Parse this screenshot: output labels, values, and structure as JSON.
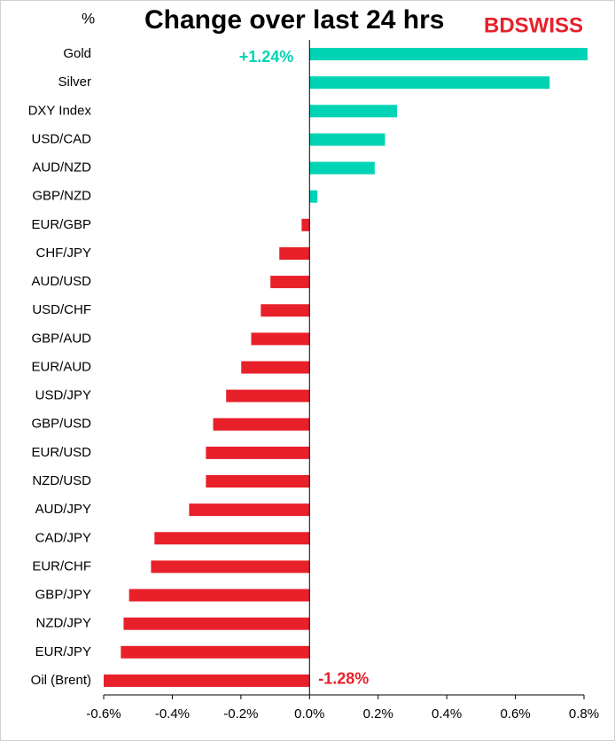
{
  "chart_data": {
    "type": "hbar",
    "title": "Change over last 24 hrs",
    "ylabel": "%",
    "logo": "BDSWISS",
    "categories": [
      "Gold",
      "Silver",
      "DXY Index",
      "USD/CAD",
      "AUD/NZD",
      "GBP/NZD",
      "EUR/GBP",
      "CHF/JPY",
      "AUD/USD",
      "USD/CHF",
      "GBP/AUD",
      "EUR/AUD",
      "USD/JPY",
      "GBP/USD",
      "EUR/USD",
      "NZD/USD",
      "AUD/JPY",
      "CAD/JPY",
      "EUR/CHF",
      "GBP/JPY",
      "NZD/JPY",
      "EUR/JPY",
      "Oil (Brent)"
    ],
    "values": [
      1.24,
      0.7,
      0.255,
      0.22,
      0.19,
      0.023,
      -0.023,
      -0.088,
      -0.114,
      -0.142,
      -0.17,
      -0.199,
      -0.243,
      -0.281,
      -0.302,
      -0.302,
      -0.351,
      -0.452,
      -0.462,
      -0.526,
      -0.542,
      -0.55,
      -1.28
    ],
    "value_labels": [
      "+1.24%",
      null,
      null,
      null,
      null,
      null,
      null,
      null,
      null,
      null,
      null,
      null,
      null,
      null,
      null,
      null,
      null,
      null,
      null,
      null,
      null,
      null,
      "-1.28%"
    ],
    "positive_color": "#00d4b4",
    "negative_color": "#e8202a",
    "xlim": [
      -0.6,
      0.8
    ],
    "xticks": [
      {
        "value": -0.6,
        "label": "-0.6%"
      },
      {
        "value": -0.4,
        "label": "-0.4%"
      },
      {
        "value": -0.2,
        "label": "-0.2%"
      },
      {
        "value": 0,
        "label": "0.0%"
      },
      {
        "value": 0.2,
        "label": "0.2%"
      },
      {
        "value": 0.4,
        "label": "0.4%"
      },
      {
        "value": 0.6,
        "label": "0.6%"
      },
      {
        "value": 0.8,
        "label": "0.8%"
      }
    ],
    "grid": false
  }
}
